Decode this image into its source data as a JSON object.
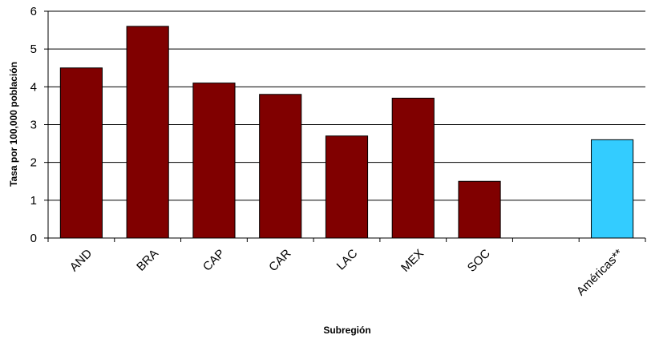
{
  "chart_data": {
    "type": "bar",
    "title": "",
    "xlabel": "Subregión",
    "ylabel": "Tasa por 100,000 población",
    "categories": [
      "AND",
      "BRA",
      "CAP",
      "CAR",
      "LAC",
      "MEX",
      "SOC",
      "",
      "Américas**"
    ],
    "values": [
      4.5,
      5.6,
      4.1,
      3.8,
      2.7,
      3.7,
      1.5,
      null,
      2.6
    ],
    "bar_colors": [
      "#800000",
      "#800000",
      "#800000",
      "#800000",
      "#800000",
      "#800000",
      "#800000",
      "#800000",
      "#33CCFF"
    ],
    "ylim": [
      0,
      6
    ],
    "yticks": [
      0,
      1,
      2,
      3,
      4,
      5,
      6
    ],
    "grid": true,
    "legend": "none"
  }
}
